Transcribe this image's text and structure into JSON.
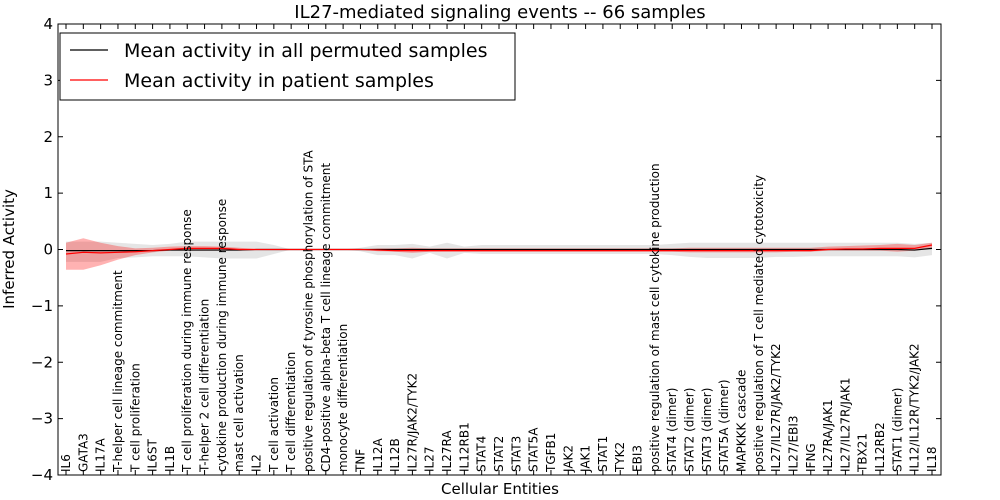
{
  "chart_data": {
    "type": "line",
    "title": "IL27-mediated signaling events -- 66 samples",
    "xlabel": "Cellular Entities",
    "ylabel": "Inferred Activity",
    "ylim": [
      -4,
      4
    ],
    "yticks": [
      -4,
      -3,
      -2,
      -1,
      0,
      1,
      2,
      3,
      4
    ],
    "ytick_labels": [
      "−4",
      "−3",
      "−2",
      "−1",
      "0",
      "1",
      "2",
      "3",
      "4"
    ],
    "legend_position": "top-left",
    "categories": [
      "IL6",
      "GATA3",
      "IL17A",
      "T-helper cell lineage commitment",
      "T cell proliferation",
      "IL6ST",
      "IL1B",
      "T cell proliferation during immune response",
      "T-helper 2 cell differentiation",
      "cytokine production during immune response",
      "mast cell activation",
      "IL2",
      "T cell activation",
      "T cell differentiation",
      "positive regulation of tyrosine phosphorylation of STA",
      "CD4-positive alpha-beta T cell lineage commitment",
      "monocyte differentiation",
      "TNF",
      "IL12A",
      "IL12B",
      "IL27R/JAK2/TYK2",
      "IL27",
      "IL27RA",
      "IL12RB1",
      "STAT4",
      "STAT2",
      "STAT3",
      "STAT5A",
      "TGFB1",
      "JAK2",
      "JAK1",
      "STAT1",
      "TYK2",
      "EBI3",
      "positive regulation of mast cell cytokine production",
      "STAT4 (dimer)",
      "STAT2 (dimer)",
      "STAT3 (dimer)",
      "STAT5A (dimer)",
      "MAPKKK cascade",
      "positive regulation of T cell mediated cytotoxicity",
      "IL27/IL27R/JAK2/TYK2",
      "IL27/EBI3",
      "IFNG",
      "IL27RA/JAK1",
      "IL27/IL27R/JAK1",
      "TBX21",
      "IL12RB2",
      "STAT1 (dimer)",
      "IL12/IL12R/TYK2/JAK2",
      "IL18"
    ],
    "series": [
      {
        "name": "Mean activity in all permuted samples",
        "color": "#000000",
        "values": [
          -0.02,
          -0.02,
          -0.02,
          -0.02,
          -0.02,
          -0.02,
          -0.01,
          -0.01,
          -0.01,
          -0.01,
          -0.01,
          0,
          0,
          0,
          0,
          0,
          0,
          0,
          0,
          0,
          0,
          0,
          0,
          0,
          0,
          0,
          0,
          0,
          0,
          0,
          0,
          0,
          0,
          0,
          0,
          0,
          0,
          0,
          0,
          0,
          0,
          0,
          0,
          0,
          0,
          0,
          0,
          0,
          0,
          -0.01,
          0.02
        ],
        "band_low": [
          -0.22,
          -0.22,
          -0.22,
          -0.15,
          -0.14,
          -0.12,
          -0.12,
          -0.12,
          -0.14,
          -0.16,
          -0.16,
          -0.16,
          -0.08,
          0,
          0,
          0,
          0,
          -0.03,
          -0.1,
          -0.1,
          -0.16,
          -0.06,
          -0.16,
          -0.06,
          -0.08,
          -0.08,
          -0.08,
          -0.08,
          -0.08,
          -0.08,
          -0.08,
          -0.08,
          -0.08,
          -0.08,
          -0.08,
          -0.1,
          -0.13,
          -0.15,
          -0.15,
          -0.15,
          -0.15,
          -0.13,
          -0.13,
          -0.12,
          -0.12,
          -0.12,
          -0.12,
          -0.12,
          -0.12,
          -0.14,
          -0.1
        ],
        "band_high": [
          0.14,
          0.14,
          0.14,
          0.12,
          0.1,
          0.08,
          0.1,
          0.14,
          0.14,
          0.14,
          0.14,
          0.14,
          0.08,
          0,
          0,
          0,
          0,
          0.03,
          0.08,
          0.08,
          0.1,
          0.05,
          0.12,
          0.05,
          0.08,
          0.08,
          0.08,
          0.08,
          0.08,
          0.08,
          0.08,
          0.08,
          0.08,
          0.08,
          0.08,
          0.1,
          0.12,
          0.12,
          0.12,
          0.12,
          0.12,
          0.12,
          0.12,
          0.12,
          0.12,
          0.12,
          0.12,
          0.12,
          0.12,
          0.1,
          0.12
        ]
      },
      {
        "name": "Mean activity in patient samples",
        "color": "#ff0000",
        "values": [
          -0.08,
          -0.05,
          -0.06,
          -0.05,
          -0.04,
          -0.02,
          0,
          0.02,
          0.02,
          0.02,
          0,
          0,
          0,
          0,
          0,
          0,
          0,
          0,
          -0.01,
          -0.02,
          -0.02,
          -0.02,
          -0.02,
          -0.02,
          -0.02,
          -0.02,
          -0.02,
          -0.02,
          -0.02,
          -0.02,
          -0.02,
          -0.02,
          -0.02,
          -0.02,
          -0.02,
          -0.02,
          -0.02,
          -0.02,
          -0.02,
          -0.02,
          -0.02,
          -0.02,
          -0.02,
          -0.02,
          0,
          0.01,
          0.01,
          0.02,
          0.02,
          0.02,
          0.08
        ],
        "band_low": [
          -0.36,
          -0.36,
          -0.28,
          -0.18,
          -0.1,
          -0.05,
          -0.02,
          -0.02,
          -0.02,
          -0.02,
          -0.02,
          -0.01,
          0,
          0,
          0,
          0,
          0,
          0,
          -0.03,
          -0.04,
          -0.06,
          -0.04,
          -0.04,
          -0.04,
          -0.04,
          -0.04,
          -0.04,
          -0.04,
          -0.04,
          -0.04,
          -0.04,
          -0.04,
          -0.04,
          -0.04,
          -0.04,
          -0.04,
          -0.05,
          -0.05,
          -0.05,
          -0.05,
          -0.05,
          -0.05,
          -0.04,
          -0.04,
          -0.02,
          -0.02,
          -0.02,
          -0.02,
          -0.04,
          -0.02,
          0.02
        ],
        "band_high": [
          0.12,
          0.2,
          0.12,
          0.06,
          0.02,
          0.03,
          0.05,
          0.06,
          0.06,
          0.05,
          0.03,
          0.01,
          0,
          0,
          0,
          0,
          0,
          0,
          0.02,
          0.02,
          0.03,
          0.02,
          0.02,
          0.02,
          0.02,
          0.02,
          0.02,
          0.02,
          0.02,
          0.02,
          0.02,
          0.02,
          0.02,
          0.02,
          0.02,
          0.02,
          0.03,
          0.03,
          0.03,
          0.03,
          0.03,
          0.03,
          0.03,
          0.03,
          0.05,
          0.06,
          0.07,
          0.08,
          0.1,
          0.08,
          0.12
        ]
      }
    ]
  }
}
